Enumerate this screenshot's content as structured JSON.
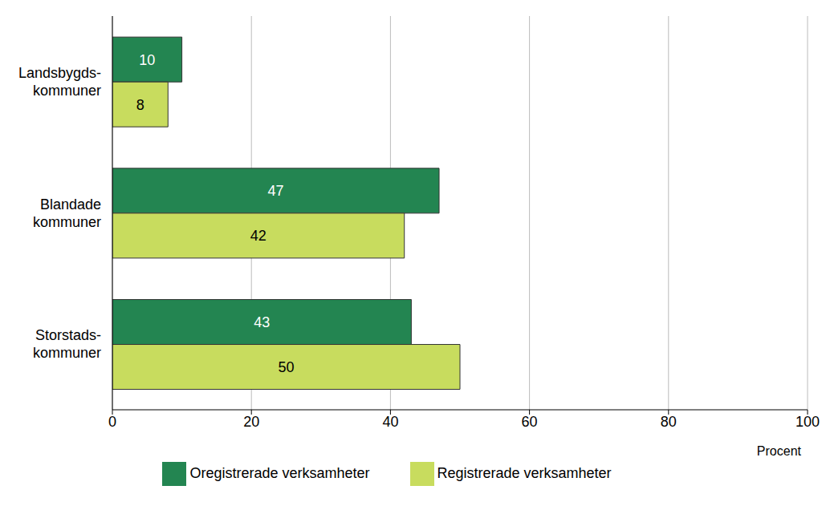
{
  "chart_data": {
    "type": "bar",
    "orientation": "horizontal",
    "categories": [
      "Landsbygds-\nkommuner",
      "Blandade\nkommuner",
      "Storstads-\nkommuner"
    ],
    "series": [
      {
        "name": "Oregistrerade verksamheter",
        "color": "#238551",
        "values": [
          10,
          47,
          43
        ]
      },
      {
        "name": "Registrerade verksamheter",
        "color": "#c8dc5e",
        "values": [
          8,
          42,
          50
        ]
      }
    ],
    "x_label": "Procent",
    "xlim": [
      0,
      100
    ],
    "xticks": [
      0,
      20,
      40,
      60,
      80,
      100
    ],
    "grid": true,
    "data_labels": true,
    "legend": "bottom"
  }
}
